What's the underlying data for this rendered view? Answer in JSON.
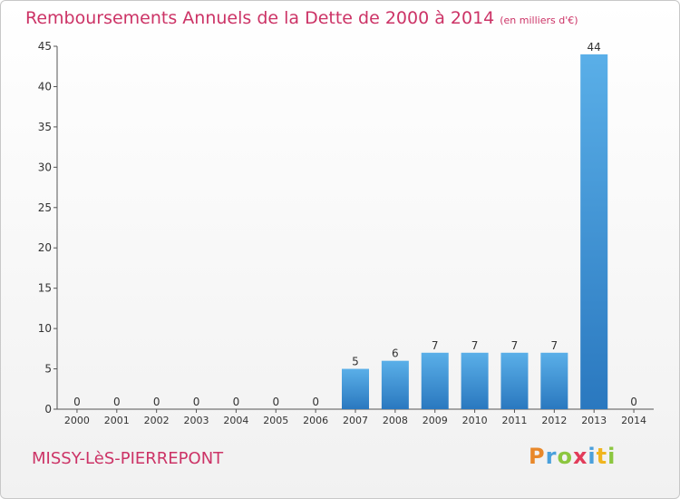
{
  "chart_data": {
    "type": "bar",
    "title": "Remboursements Annuels de la Dette de 2000 à 2014",
    "subtitle": "(en milliers d'€)",
    "categories": [
      "2000",
      "2001",
      "2002",
      "2003",
      "2004",
      "2005",
      "2006",
      "2007",
      "2008",
      "2009",
      "2010",
      "2011",
      "2012",
      "2013",
      "2014"
    ],
    "values": [
      0,
      0,
      0,
      0,
      0,
      0,
      0,
      5,
      6,
      7,
      7,
      7,
      7,
      44,
      0
    ],
    "ylim": [
      0,
      45
    ],
    "yticks": [
      0,
      5,
      10,
      15,
      20,
      25,
      30,
      35,
      40,
      45
    ],
    "xlabel": "",
    "ylabel": "",
    "grid": false,
    "bar_color": "#3a8fd4"
  },
  "footer": {
    "place": "MISSY-LèS-PIERREPONT",
    "logo_letters": [
      "P",
      "r",
      "o",
      "x",
      "i",
      "t",
      "i"
    ],
    "logo_colors": [
      "#e8882a",
      "#4aa0dc",
      "#8cc63f",
      "#e23c5a",
      "#4aa0dc",
      "#f0b520",
      "#8cc63f"
    ]
  }
}
